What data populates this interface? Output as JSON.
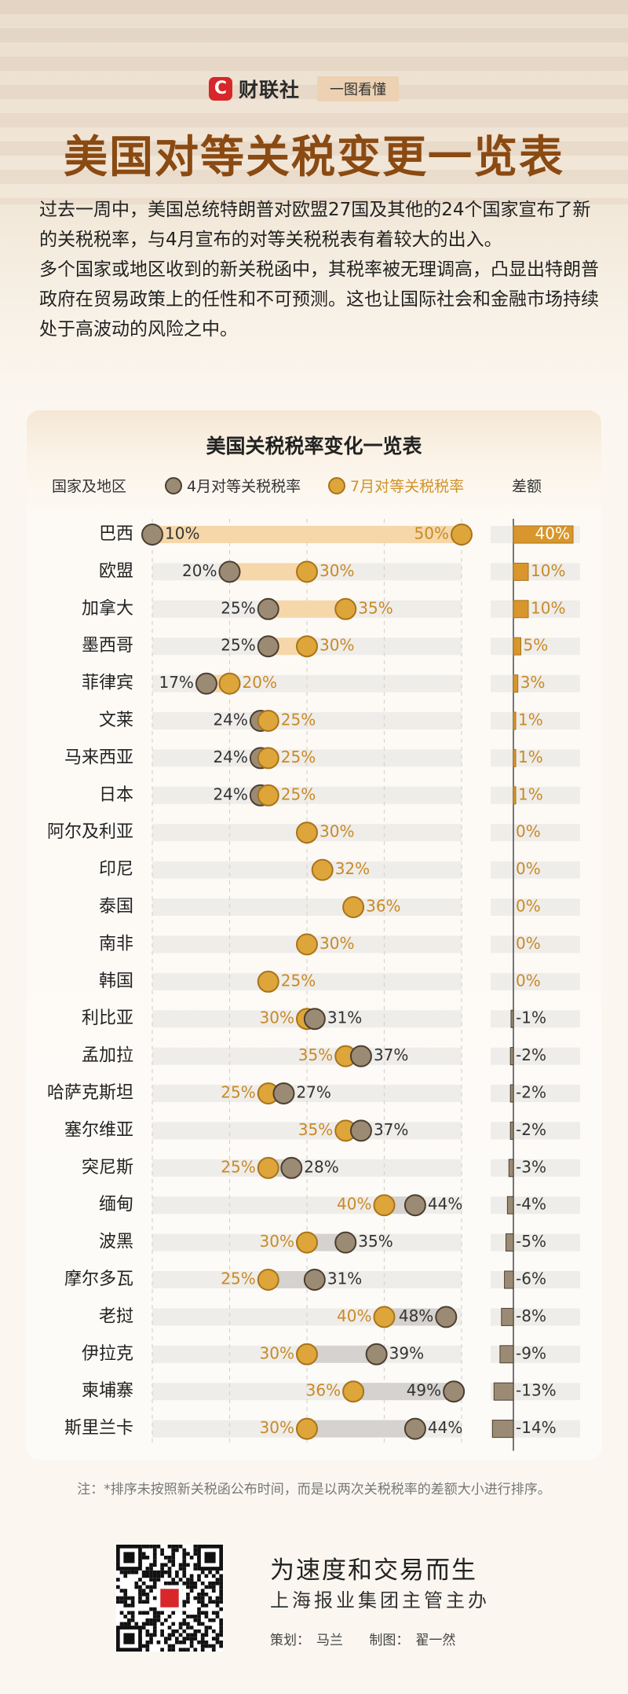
{
  "brand": {
    "logo_letter": "C",
    "name": "财联社",
    "tag": "一图看懂"
  },
  "title": "美国对等关税变更一览表",
  "intro": [
    "过去一周中，美国总统特朗普对欧盟27国及其他的24个国家宣布了新的关税税率，与4月宣布的对等关税税表有着较大的出入。",
    "多个国家或地区收到的新关税函中，其税率被无理调高，凸显出特朗普政府在贸易政策上的任性和不可预测。这也让国际社会和金融市场持续处于高波动的风险之中。"
  ],
  "colors": {
    "april_dot": "#9c8b74",
    "july_dot": "#dea53a",
    "increase_band": "#f6d7a9",
    "decrease_band": "#d5d2cf",
    "diff_positive": "#d8962c",
    "diff_negative": "#9c8b74",
    "title_color": "#8a4a12"
  },
  "chart_data": {
    "type": "dumbbell",
    "title": "美国关税税率变化一览表",
    "column_headers": {
      "country": "国家及地区",
      "diff": "差额"
    },
    "legend": [
      {
        "name": "4月对等关税税率",
        "color": "#9c8b74"
      },
      {
        "name": "7月对等关税税率",
        "color": "#dea53a"
      }
    ],
    "xlim": [
      10,
      50
    ],
    "unit": "%",
    "rows": [
      {
        "country": "巴西",
        "april": 10,
        "july": 50,
        "diff": 40
      },
      {
        "country": "欧盟",
        "april": 20,
        "july": 30,
        "diff": 10
      },
      {
        "country": "加拿大",
        "april": 25,
        "july": 35,
        "diff": 10
      },
      {
        "country": "墨西哥",
        "april": 25,
        "july": 30,
        "diff": 5
      },
      {
        "country": "菲律宾",
        "april": 17,
        "july": 20,
        "diff": 3
      },
      {
        "country": "文莱",
        "april": 24,
        "july": 25,
        "diff": 1
      },
      {
        "country": "马来西亚",
        "april": 24,
        "july": 25,
        "diff": 1
      },
      {
        "country": "日本",
        "april": 24,
        "july": 25,
        "diff": 1
      },
      {
        "country": "阿尔及利亚",
        "april": 30,
        "july": 30,
        "diff": 0
      },
      {
        "country": "印尼",
        "april": 32,
        "july": 32,
        "diff": 0
      },
      {
        "country": "泰国",
        "april": 36,
        "july": 36,
        "diff": 0
      },
      {
        "country": "南非",
        "april": 30,
        "july": 30,
        "diff": 0
      },
      {
        "country": "韩国",
        "april": 25,
        "july": 25,
        "diff": 0
      },
      {
        "country": "利比亚",
        "april": 31,
        "july": 30,
        "diff": -1
      },
      {
        "country": "孟加拉",
        "april": 37,
        "july": 35,
        "diff": -2
      },
      {
        "country": "哈萨克斯坦",
        "april": 27,
        "july": 25,
        "diff": -2
      },
      {
        "country": "塞尔维亚",
        "april": 37,
        "july": 35,
        "diff": -2
      },
      {
        "country": "突尼斯",
        "april": 28,
        "july": 25,
        "diff": -3
      },
      {
        "country": "缅甸",
        "april": 44,
        "july": 40,
        "diff": -4
      },
      {
        "country": "波黑",
        "april": 35,
        "july": 30,
        "diff": -5
      },
      {
        "country": "摩尔多瓦",
        "april": 31,
        "july": 25,
        "diff": -6
      },
      {
        "country": "老挝",
        "april": 48,
        "july": 40,
        "diff": -8
      },
      {
        "country": "伊拉克",
        "april": 39,
        "july": 30,
        "diff": -9
      },
      {
        "country": "柬埔寨",
        "april": 49,
        "july": 36,
        "diff": -13
      },
      {
        "country": "斯里兰卡",
        "april": 44,
        "july": 30,
        "diff": -14
      }
    ]
  },
  "note": "注：*排序未按照新关税函公布时间，而是以两次关税税率的差额大小进行排序。",
  "footer": {
    "slogan": "为速度和交易而生",
    "sub": "上海报业集团主管主办",
    "planner_label": "策划：",
    "planner": "马兰",
    "designer_label": "制图：",
    "designer": "翟一然",
    "qr_icon": "qr-code-icon"
  }
}
